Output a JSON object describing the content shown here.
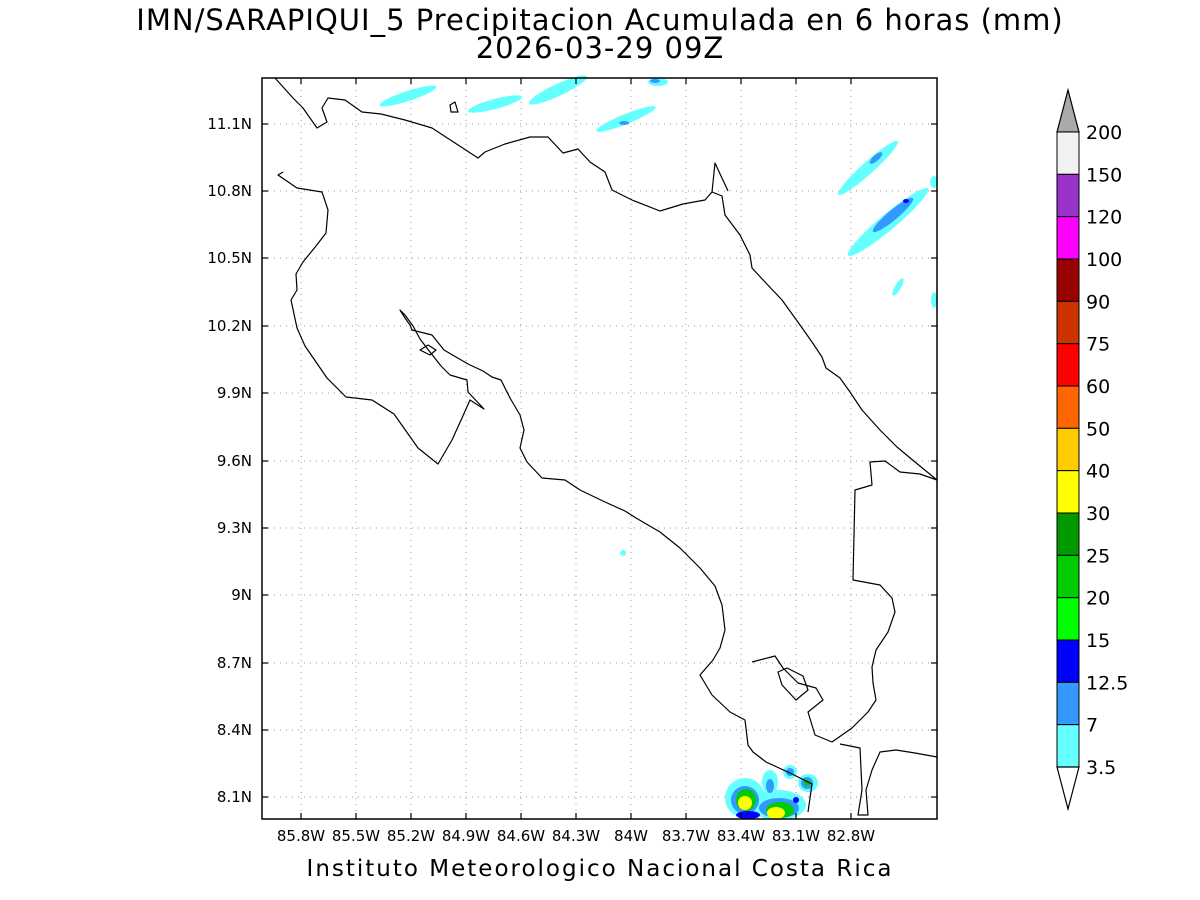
{
  "title": {
    "line1": "IMN/SARAPIQUI_5 Precipitacion Acumulada en 6 horas (mm)",
    "line2": "2026-03-29 09Z"
  },
  "credit": "Instituto Meteorologico Nacional Costa Rica",
  "map": {
    "lon_labels": [
      "85.8W",
      "85.5W",
      "85.2W",
      "84.9W",
      "84.6W",
      "84.3W",
      "84W",
      "83.7W",
      "83.4W",
      "83.1W",
      "82.8W"
    ],
    "lat_labels": [
      "11.1N",
      "10.8N",
      "10.5N",
      "10.2N",
      "9.9N",
      "9.6N",
      "9.3N",
      "9N",
      "8.7N",
      "8.4N",
      "8.1N"
    ],
    "grid": "dotted",
    "region": "Costa Rica",
    "variable": "6-hour accumulated precipitation (mm)"
  },
  "colorbar": {
    "labels": [
      "200",
      "150",
      "120",
      "100",
      "90",
      "75",
      "60",
      "50",
      "40",
      "30",
      "25",
      "20",
      "15",
      "12.5",
      "7",
      "3.5"
    ],
    "colors": [
      "#f2f2f2",
      "#9933cc",
      "#ff00ff",
      "#990000",
      "#cc3300",
      "#ff0000",
      "#ff6600",
      "#ffcc00",
      "#ffff00",
      "#009900",
      "#00cc00",
      "#00ff00",
      "#0000ff",
      "#3399ff",
      "#66ffff"
    ],
    "top_arrow_color": "#a9a9a9",
    "bottom_arrow_color": "#ffffff"
  }
}
